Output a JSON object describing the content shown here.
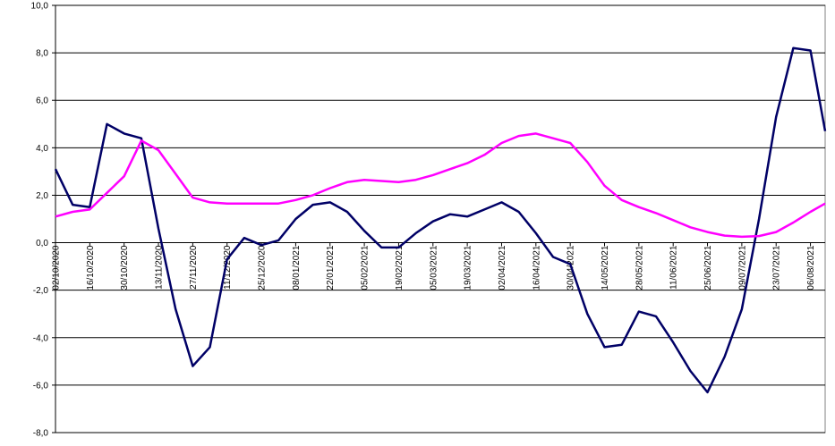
{
  "chart_data": {
    "type": "line",
    "x": [
      "02/10/2020",
      "09/10/2020",
      "16/10/2020",
      "23/10/2020",
      "30/10/2020",
      "06/11/2020",
      "13/11/2020",
      "20/11/2020",
      "27/11/2020",
      "04/12/2020",
      "11/12/2020",
      "18/12/2020",
      "25/12/2020",
      "01/01/2021",
      "08/01/2021",
      "15/01/2021",
      "22/01/2021",
      "29/01/2021",
      "05/02/2021",
      "12/02/2021",
      "19/02/2021",
      "26/02/2021",
      "05/03/2021",
      "12/03/2021",
      "19/03/2021",
      "26/03/2021",
      "02/04/2021",
      "09/04/2021",
      "16/04/2021",
      "23/04/2021",
      "30/04/2021",
      "07/05/2021",
      "14/05/2021",
      "21/05/2021",
      "28/05/2021",
      "04/06/2021",
      "11/06/2021",
      "18/06/2021",
      "25/06/2021",
      "02/07/2021",
      "09/07/2021",
      "16/07/2021",
      "23/07/2021",
      "30/07/2021",
      "06/08/2021",
      "12/08/2021"
    ],
    "series": [
      {
        "color": "#000066",
        "values": [
          3.1,
          1.6,
          1.5,
          5.0,
          4.6,
          4.4,
          0.6,
          -2.8,
          -5.2,
          -4.4,
          -0.7,
          0.2,
          -0.1,
          0.1,
          1.0,
          1.6,
          1.7,
          1.3,
          0.5,
          -0.2,
          -0.2,
          0.4,
          0.9,
          1.2,
          1.1,
          1.4,
          1.7,
          1.3,
          0.4,
          -0.6,
          -0.9,
          -3.0,
          -4.4,
          -4.3,
          -2.9,
          -3.1,
          -4.2,
          -5.4,
          -6.3,
          -4.8,
          -2.8,
          1.0,
          5.3,
          8.2,
          8.1,
          4.7
        ]
      },
      {
        "color": "#ff00ff",
        "values": [
          1.1,
          1.3,
          1.4,
          2.1,
          2.8,
          4.3,
          3.9,
          2.9,
          1.9,
          1.7,
          1.65,
          1.65,
          1.65,
          1.65,
          1.8,
          2.0,
          2.3,
          2.55,
          2.65,
          2.6,
          2.55,
          2.65,
          2.85,
          3.1,
          3.35,
          3.7,
          4.2,
          4.5,
          4.6,
          4.4,
          4.2,
          3.4,
          2.4,
          1.8,
          1.5,
          1.25,
          0.95,
          0.65,
          0.45,
          0.3,
          0.25,
          0.28,
          0.45,
          0.85,
          1.3,
          1.65
        ]
      }
    ],
    "xlim": [
      "02/10/2020",
      "12/08/2021"
    ],
    "xticks": [
      "02/10/2020",
      "16/10/2020",
      "30/10/2020",
      "13/11/2020",
      "27/11/2020",
      "11/12/2020",
      "25/12/2020",
      "08/01/2021",
      "22/01/2021",
      "05/02/2021",
      "19/02/2021",
      "05/03/2021",
      "19/03/2021",
      "02/04/2021",
      "16/04/2021",
      "30/04/2021",
      "14/05/2021",
      "28/05/2021",
      "11/06/2021",
      "25/06/2021",
      "09/07/2021",
      "23/07/2021",
      "06/08/2021"
    ],
    "ylim": [
      -8,
      10
    ],
    "yticks": [
      {
        "value": -8,
        "label": "-8,0"
      },
      {
        "value": -6,
        "label": "-6,0"
      },
      {
        "value": -4,
        "label": "-4,0"
      },
      {
        "value": -2,
        "label": "-2,0"
      },
      {
        "value": 0,
        "label": "0,0"
      },
      {
        "value": 2,
        "label": "2,0"
      },
      {
        "value": 4,
        "label": "4,0"
      },
      {
        "value": 6,
        "label": "6,0"
      },
      {
        "value": 8,
        "label": "8,0"
      },
      {
        "value": 10,
        "label": "10,0"
      }
    ],
    "grid": true
  }
}
